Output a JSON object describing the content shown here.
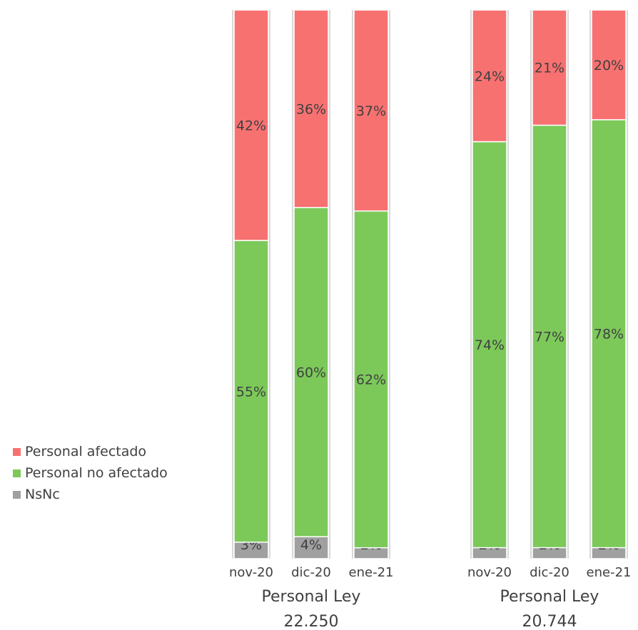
{
  "chart_data": {
    "type": "bar",
    "stacked": true,
    "colors": {
      "Personal afectado": "#f87171",
      "Personal no afectado": "#7cc95a",
      "NsNc": "#a0a0a0"
    },
    "legend": {
      "placement": "left",
      "items": [
        "Personal afectado",
        "Personal no afectado",
        "NsNc"
      ]
    },
    "groups": [
      {
        "label_line1": "Personal Ley",
        "label_line2": "22.250",
        "categories": [
          "nov-20",
          "dic-20",
          "ene-21"
        ],
        "series": [
          {
            "name": "NsNc",
            "values": [
              3,
              4,
              2
            ],
            "labels": [
              "3%",
              "4%",
              "2%"
            ]
          },
          {
            "name": "Personal no afectado",
            "values": [
              55,
              60,
              62
            ],
            "labels": [
              "55%",
              "60%",
              "62%"
            ]
          },
          {
            "name": "Personal afectado",
            "values": [
              42,
              36,
              37
            ],
            "labels": [
              "42%",
              "36%",
              "37%"
            ]
          }
        ]
      },
      {
        "label_line1": "Personal Ley",
        "label_line2": "20.744",
        "categories": [
          "nov-20",
          "dic-20",
          "ene-21"
        ],
        "series": [
          {
            "name": "NsNc",
            "values": [
              2,
              2,
              2
            ],
            "labels": [
              "2%",
              "2%",
              "2%"
            ]
          },
          {
            "name": "Personal no afectado",
            "values": [
              74,
              77,
              78
            ],
            "labels": [
              "74%",
              "77%",
              "78%"
            ]
          },
          {
            "name": "Personal afectado",
            "values": [
              24,
              21,
              20
            ],
            "labels": [
              "24%",
              "21%",
              "20%"
            ]
          }
        ]
      }
    ]
  }
}
